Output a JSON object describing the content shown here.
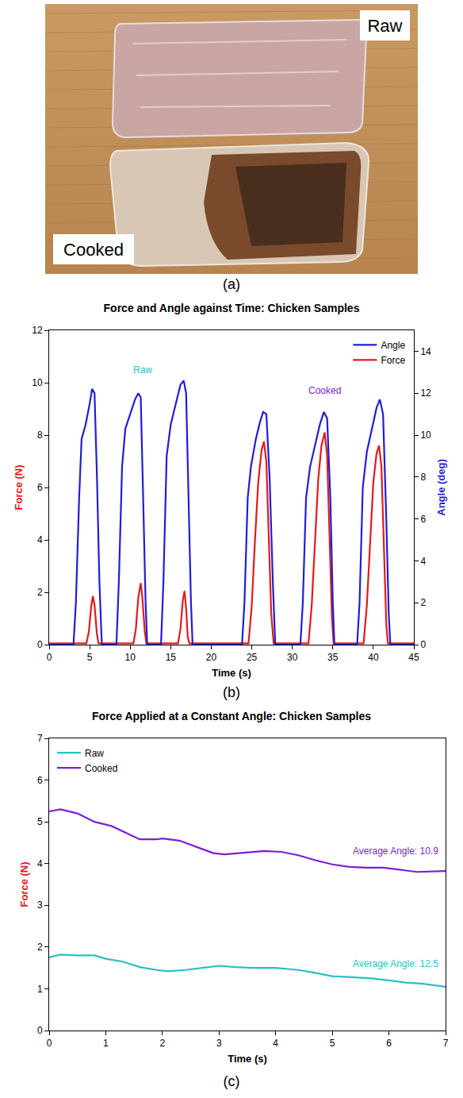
{
  "photo": {
    "labels": [
      "Raw",
      "Cooked"
    ],
    "caption": "(a)"
  },
  "chart_data": [
    {
      "type": "line",
      "title": "Force and Angle against Time: Chicken Samples",
      "caption": "(b)",
      "xlabel": "Time (s)",
      "ylabel": {
        "text": "Force (N)",
        "color": "#e31a1c"
      },
      "y2label": {
        "text": "Angle (deg)",
        "color": "#1f1fd6"
      },
      "xlim": [
        0,
        45
      ],
      "xticks": [
        0,
        5,
        10,
        15,
        20,
        25,
        30,
        35,
        40,
        45
      ],
      "ylim": [
        0,
        12
      ],
      "yticks": [
        0,
        2,
        4,
        6,
        8,
        10,
        12
      ],
      "y2lim": [
        0,
        15
      ],
      "y2ticks": [
        0,
        2,
        4,
        6,
        8,
        10,
        12,
        14
      ],
      "legend": "top right",
      "series": [
        {
          "name": "Angle",
          "color": "#1f1fd6",
          "axis": "y2",
          "x": [
            0,
            3.0,
            3.3,
            3.7,
            4.0,
            4.5,
            5.0,
            5.3,
            5.6,
            5.9,
            6.2,
            6.5,
            8.3,
            8.6,
            9.0,
            9.4,
            10.0,
            10.6,
            11.0,
            11.3,
            11.6,
            11.9,
            12.1,
            13.8,
            14.1,
            14.5,
            15.0,
            15.6,
            16.2,
            16.6,
            16.9,
            17.2,
            17.5,
            17.7,
            23.8,
            24.1,
            24.5,
            24.9,
            25.5,
            26.0,
            26.4,
            26.8,
            27.2,
            27.6,
            27.9,
            31.0,
            31.3,
            31.7,
            32.2,
            32.8,
            33.4,
            33.9,
            34.3,
            34.7,
            35.0,
            35.2,
            38.0,
            38.3,
            38.7,
            39.2,
            39.8,
            40.4,
            40.8,
            41.2,
            41.6,
            41.9,
            42.1,
            45
          ],
          "values": [
            0,
            0,
            2,
            7,
            9.8,
            10.5,
            11.5,
            12.2,
            12,
            8,
            3,
            0,
            0,
            3,
            8.5,
            10.3,
            11,
            11.7,
            12.0,
            11.8,
            7,
            2,
            0,
            0,
            3,
            9,
            10.5,
            11.5,
            12.4,
            12.6,
            12,
            7,
            2,
            0,
            0,
            2,
            7,
            8.5,
            9.8,
            10.6,
            11.1,
            11,
            8,
            3,
            0,
            0,
            2,
            7,
            8.5,
            9.5,
            10.5,
            11.1,
            10.8,
            7,
            2,
            0,
            0,
            2,
            7.5,
            9.2,
            10.3,
            11.3,
            11.7,
            11,
            6,
            1.5,
            0,
            0
          ]
        },
        {
          "name": "Force",
          "color": "#e31a1c",
          "x": [
            0,
            4.6,
            4.9,
            5.2,
            5.4,
            5.6,
            5.9,
            6.1,
            10.4,
            10.7,
            11.0,
            11.3,
            11.5,
            11.8,
            12.0,
            15.9,
            16.2,
            16.5,
            16.7,
            16.9,
            17.1,
            17.3,
            24.6,
            25.0,
            25.4,
            25.8,
            26.2,
            26.5,
            26.8,
            27.1,
            27.4,
            27.7,
            32.0,
            32.4,
            32.8,
            33.2,
            33.6,
            34.0,
            34.3,
            34.6,
            34.9,
            35.1,
            38.8,
            39.2,
            39.6,
            40.0,
            40.4,
            40.7,
            41.0,
            41.3,
            41.6,
            41.8,
            45
          ],
          "values": [
            0.05,
            0.05,
            0.5,
            1.5,
            1.85,
            1.5,
            0.4,
            0.05,
            0.05,
            0.6,
            1.8,
            2.35,
            1.8,
            0.5,
            0.05,
            0.05,
            0.6,
            1.7,
            2.05,
            1.4,
            0.3,
            0.05,
            0.05,
            1.5,
            4,
            6.2,
            7.4,
            7.75,
            7,
            4,
            1.2,
            0.05,
            0.05,
            1.5,
            4,
            6.3,
            7.6,
            8.1,
            7.2,
            4,
            1,
            0.05,
            0.05,
            1.5,
            4,
            6.2,
            7.3,
            7.6,
            6.8,
            3.5,
            0.8,
            0.05,
            0.05
          ]
        }
      ],
      "annotations": [
        {
          "text": "Raw",
          "x": 11.5,
          "y": 10.5,
          "color": "#2bbfc4"
        },
        {
          "text": "Cooked",
          "x": 34,
          "y": 9.7,
          "color": "#7b1fd6"
        }
      ]
    },
    {
      "type": "line",
      "title": "Force Applied at a Constant Angle: Chicken Samples",
      "caption": "(c)",
      "xlabel": "Time (s)",
      "ylabel": {
        "text": "Force (N)",
        "color": "#e31a1c"
      },
      "xlim": [
        0,
        7
      ],
      "xticks": [
        0,
        1,
        2,
        3,
        4,
        5,
        6,
        7
      ],
      "ylim": [
        0,
        7
      ],
      "yticks": [
        0,
        1,
        2,
        3,
        4,
        5,
        6,
        7
      ],
      "legend": "top left",
      "series": [
        {
          "name": "Raw",
          "color": "#2bbfc4",
          "x": [
            0,
            0.2,
            0.5,
            0.8,
            1.0,
            1.3,
            1.6,
            1.9,
            2.1,
            2.4,
            2.7,
            3.0,
            3.3,
            3.6,
            4.0,
            4.4,
            4.7,
            5.0,
            5.3,
            5.7,
            6.0,
            6.3,
            6.6,
            7.0
          ],
          "values": [
            1.75,
            1.82,
            1.8,
            1.8,
            1.72,
            1.65,
            1.52,
            1.45,
            1.42,
            1.45,
            1.5,
            1.55,
            1.52,
            1.5,
            1.5,
            1.45,
            1.38,
            1.3,
            1.28,
            1.25,
            1.2,
            1.15,
            1.12,
            1.05
          ]
        },
        {
          "name": "Cooked",
          "color": "#7b1fd6",
          "x": [
            0,
            0.2,
            0.5,
            0.8,
            1.1,
            1.4,
            1.6,
            1.9,
            2.0,
            2.3,
            2.6,
            2.9,
            3.1,
            3.4,
            3.8,
            4.1,
            4.4,
            4.7,
            5.0,
            5.3,
            5.6,
            5.9,
            6.2,
            6.5,
            7.0
          ],
          "values": [
            5.25,
            5.3,
            5.2,
            5.0,
            4.9,
            4.7,
            4.58,
            4.58,
            4.6,
            4.55,
            4.4,
            4.25,
            4.22,
            4.25,
            4.3,
            4.28,
            4.2,
            4.08,
            3.98,
            3.92,
            3.9,
            3.9,
            3.85,
            3.8,
            3.82
          ]
        }
      ],
      "annotations": [
        {
          "text": "Average Angle: 10.9",
          "x": 6.9,
          "y": 4.12,
          "color": "#7b1fd6"
        },
        {
          "text": "Average Angle: 12.5",
          "x": 6.9,
          "y": 1.42,
          "color": "#2bbfc4"
        }
      ]
    }
  ]
}
